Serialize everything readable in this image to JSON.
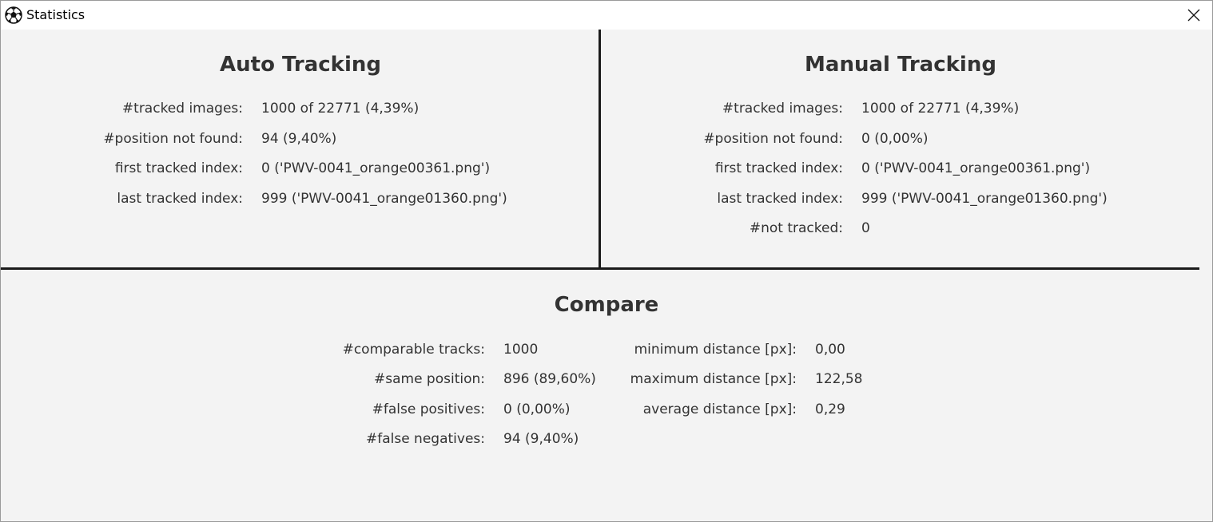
{
  "window": {
    "title": "Statistics",
    "app_icon": "soccer-ball-icon",
    "close_icon": "close-icon"
  },
  "auto": {
    "title": "Auto Tracking",
    "rows": [
      {
        "label": "#tracked images:",
        "value": "1000 of 22771 (4,39%)"
      },
      {
        "label": "#position not found:",
        "value": "94 (9,40%)"
      },
      {
        "label": "first tracked index:",
        "value": "0 ('PWV-0041_orange00361.png')"
      },
      {
        "label": "last tracked index:",
        "value": "999 ('PWV-0041_orange01360.png')"
      }
    ]
  },
  "manual": {
    "title": "Manual Tracking",
    "rows": [
      {
        "label": "#tracked images:",
        "value": "1000 of 22771 (4,39%)"
      },
      {
        "label": "#position not found:",
        "value": "0 (0,00%)"
      },
      {
        "label": "first tracked index:",
        "value": "0 ('PWV-0041_orange00361.png')"
      },
      {
        "label": "last tracked index:",
        "value": "999 ('PWV-0041_orange01360.png')"
      },
      {
        "label": "#not tracked:",
        "value": "0"
      }
    ]
  },
  "compare": {
    "title": "Compare",
    "left_rows": [
      {
        "label": "#comparable tracks:",
        "value": "1000"
      },
      {
        "label": "#same position:",
        "value": "896 (89,60%)"
      },
      {
        "label": "#false positives:",
        "value": "0 (0,00%)"
      },
      {
        "label": "#false negatives:",
        "value": "94 (9,40%)"
      }
    ],
    "right_rows": [
      {
        "label": "minimum distance [px]:",
        "value": "0,00"
      },
      {
        "label": "maximum distance [px]:",
        "value": "122,58"
      },
      {
        "label": "average distance [px]:",
        "value": "0,29"
      }
    ]
  }
}
